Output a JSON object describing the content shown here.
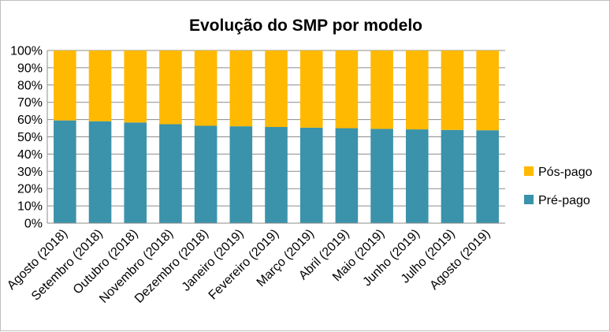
{
  "chart_data": {
    "type": "bar",
    "stacked": true,
    "title": "Evolução do SMP por modelo",
    "categories": [
      "Agosto (2018)",
      "Setembro (2018)",
      "Outubro (2018)",
      "Novembro (2018)",
      "Dezembro (2018)",
      "Janeiro (2019)",
      "Fevereiro (2019)",
      "Março (2019)",
      "Abril (2019)",
      "Maio (2019)",
      "Junho (2019)",
      "Julho (2019)",
      "Agosto (2019)"
    ],
    "series": [
      {
        "name": "Pré-pago",
        "color": "#3a93aa",
        "values": [
          59.5,
          59.0,
          58.3,
          57.3,
          56.4,
          56.1,
          55.7,
          55.3,
          55.0,
          54.6,
          54.3,
          54.0,
          53.8
        ]
      },
      {
        "name": "Pós-pago",
        "color": "#ffb900",
        "values": [
          40.5,
          41.0,
          41.7,
          42.7,
          43.6,
          43.9,
          44.3,
          44.7,
          45.0,
          45.4,
          45.7,
          46.0,
          46.2
        ]
      }
    ],
    "ylim": [
      0,
      100
    ],
    "yticks": [
      "0%",
      "10%",
      "20%",
      "30%",
      "40%",
      "50%",
      "60%",
      "70%",
      "80%",
      "90%",
      "100%"
    ],
    "grid": true,
    "legend": "right"
  }
}
